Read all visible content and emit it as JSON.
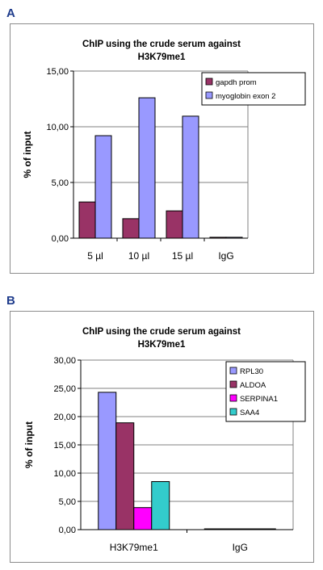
{
  "colors": {
    "frame": "#8c8c8c",
    "axis": "#000000",
    "grid": "#808080",
    "plot_bg": "#ffffff"
  },
  "chart_data": [
    {
      "panel": "A",
      "type": "bar",
      "title": [
        "ChIP using the crude serum against",
        "H3K79me1"
      ],
      "xlabel": "",
      "ylabel": "% of input",
      "ylim": [
        0,
        15
      ],
      "yticks": [
        "0,00",
        "5,00",
        "10,00",
        "15,00"
      ],
      "ytick_values": [
        0,
        5,
        10,
        15
      ],
      "grid": true,
      "legend_position": "top-right",
      "categories": [
        "5 µl",
        "10 µl",
        "15 µl",
        "IgG"
      ],
      "series": [
        {
          "name": "gapdh prom",
          "color": "#993366",
          "values": [
            3.25,
            1.75,
            2.45,
            0.08
          ]
        },
        {
          "name": "myoglobin exon 2",
          "color": "#9999ff",
          "values": [
            9.2,
            12.6,
            10.95,
            0.08
          ]
        }
      ]
    },
    {
      "panel": "B",
      "type": "bar",
      "title": [
        "ChIP using the crude serum against",
        "H3K79me1"
      ],
      "xlabel": "",
      "ylabel": "% of input",
      "ylim": [
        0,
        30
      ],
      "yticks": [
        "0,00",
        "5,00",
        "10,00",
        "15,00",
        "20,00",
        "25,00",
        "30,00"
      ],
      "ytick_values": [
        0,
        5,
        10,
        15,
        20,
        25,
        30
      ],
      "grid": true,
      "legend_position": "top-right",
      "categories": [
        "H3K79me1",
        "IgG"
      ],
      "series": [
        {
          "name": "RPL30",
          "color": "#9999ff",
          "values": [
            24.3,
            0.05
          ]
        },
        {
          "name": "ALDOA",
          "color": "#993366",
          "values": [
            18.9,
            0.05
          ]
        },
        {
          "name": "SERPINA1",
          "color": "#ff00ff",
          "values": [
            3.9,
            0.05
          ]
        },
        {
          "name": "SAA4",
          "color": "#33cccc",
          "values": [
            8.5,
            0.05
          ]
        }
      ]
    }
  ]
}
